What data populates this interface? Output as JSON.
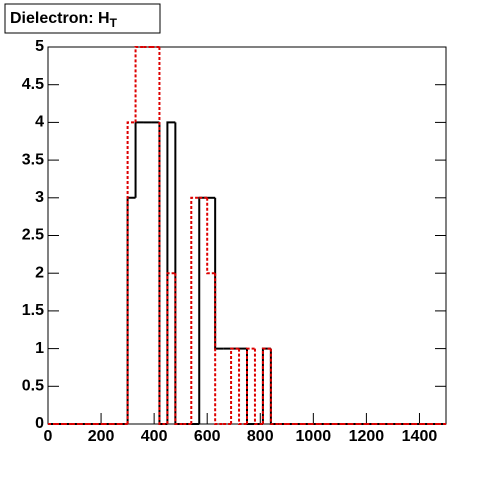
{
  "chart_data": {
    "type": "histogram",
    "title": "Dielectron: H",
    "title_subscript": "T",
    "bins": [
      0,
      30,
      60,
      90,
      120,
      150,
      180,
      210,
      240,
      270,
      300,
      330,
      360,
      390,
      420,
      450,
      480,
      510,
      540,
      570,
      600,
      630,
      660,
      690,
      720,
      750,
      780,
      810,
      840,
      870,
      900,
      930,
      960,
      990,
      1020,
      1050,
      1080,
      1110,
      1140,
      1170,
      1200,
      1230,
      1260,
      1290,
      1320,
      1350,
      1380,
      1410,
      1440,
      1470,
      1500
    ],
    "series": [
      {
        "color": "#000000",
        "style": "solid",
        "values": [
          0,
          0,
          0,
          0,
          0,
          0,
          0,
          0,
          0,
          0,
          3,
          4,
          4,
          4,
          0,
          4,
          0,
          0,
          0,
          3,
          3,
          1,
          1,
          1,
          1,
          0,
          0,
          1,
          0,
          0,
          0,
          0,
          0,
          0,
          0,
          0,
          0,
          0,
          0,
          0,
          0,
          0,
          0,
          0,
          0,
          0,
          0,
          0,
          0,
          0
        ]
      },
      {
        "color": "#dd0000",
        "style": "dotted",
        "values": [
          0,
          0,
          0,
          0,
          0,
          0,
          0,
          0,
          0,
          0,
          4,
          5,
          5,
          5,
          0,
          2,
          0,
          0,
          3,
          3,
          2,
          0,
          0,
          1,
          0,
          1,
          0,
          1,
          0,
          0,
          0,
          0,
          0,
          0,
          0,
          0,
          0,
          0,
          0,
          0,
          0,
          0,
          0,
          0,
          0,
          0,
          0,
          0,
          0,
          0
        ]
      }
    ],
    "xlim": [
      0,
      1500
    ],
    "xticks": [
      0,
      200,
      400,
      600,
      800,
      1000,
      1200,
      1400
    ],
    "ylim": [
      0,
      5
    ],
    "yticks": [
      0,
      0.5,
      1,
      1.5,
      2,
      2.5,
      3,
      3.5,
      4,
      4.5,
      5
    ]
  }
}
